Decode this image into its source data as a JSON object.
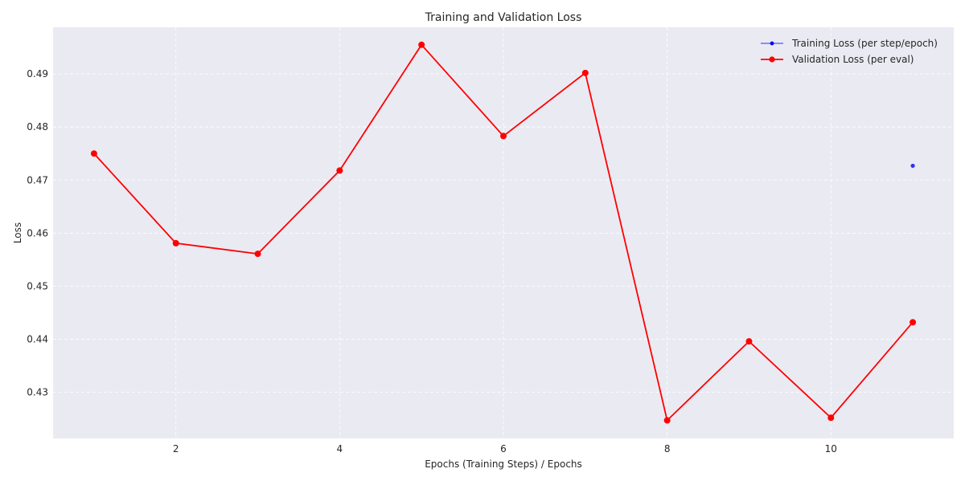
{
  "chart_data": {
    "type": "line",
    "title": "Training and Validation Loss",
    "xlabel": "Epochs (Training Steps) / Epochs",
    "ylabel": "Loss",
    "xlim": [
      0.5,
      11.5
    ],
    "ylim": [
      0.4213,
      0.4988
    ],
    "xticks": [
      2,
      4,
      6,
      8,
      10
    ],
    "yticks": [
      0.43,
      0.44,
      0.45,
      0.46,
      0.47,
      0.48,
      0.49
    ],
    "grid": true,
    "legend_position": "top-right",
    "background": "#eaeaf2",
    "series": [
      {
        "name": "Training Loss (per step/epoch)",
        "color": "#0000ff",
        "marker": "small-dot",
        "points": [
          {
            "x": 11,
            "y": 0.4727
          }
        ]
      },
      {
        "name": "Validation Loss (per eval)",
        "color": "#ff0000",
        "marker": "dot",
        "points": [
          {
            "x": 1,
            "y": 0.475
          },
          {
            "x": 2,
            "y": 0.4581
          },
          {
            "x": 3,
            "y": 0.4561
          },
          {
            "x": 4,
            "y": 0.4718
          },
          {
            "x": 5,
            "y": 0.4955
          },
          {
            "x": 6,
            "y": 0.4783
          },
          {
            "x": 7,
            "y": 0.4902
          },
          {
            "x": 8,
            "y": 0.4247
          },
          {
            "x": 9,
            "y": 0.4396
          },
          {
            "x": 10,
            "y": 0.4252
          },
          {
            "x": 11,
            "y": 0.4432
          }
        ]
      }
    ]
  }
}
